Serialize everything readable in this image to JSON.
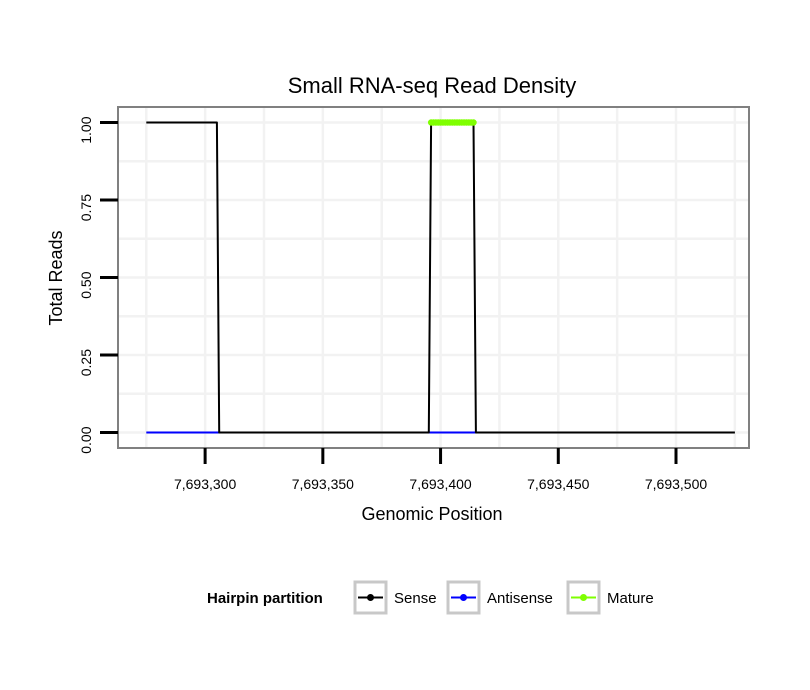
{
  "chart_data": {
    "type": "line",
    "title": "Small RNA-seq Read Density",
    "xlabel": "Genomic Position",
    "ylabel": "Total Reads",
    "xlim": [
      7693263,
      7693531
    ],
    "ylim": [
      -0.05,
      1.05
    ],
    "x_ticks": [
      7693300,
      7693350,
      7693400,
      7693450,
      7693500
    ],
    "x_tick_labels": [
      "7,693,300",
      "7,693,350",
      "7,693,400",
      "7,693,450",
      "7,693,500"
    ],
    "y_ticks": [
      0,
      0.25,
      0.5,
      0.75,
      1.0
    ],
    "y_tick_labels": [
      "0.00",
      "0.25",
      "0.50",
      "0.75",
      "1.00"
    ],
    "grid": true,
    "legend": {
      "title": "Hairpin partition",
      "position": "bottom",
      "entries": [
        "Sense",
        "Antisense",
        "Mature"
      ]
    },
    "series": [
      {
        "name": "Sense",
        "color": "#000000",
        "x": [
          7693275,
          7693305,
          7693306,
          7693395,
          7693396,
          7693414,
          7693415,
          7693525
        ],
        "y": [
          1,
          1,
          0,
          0,
          1,
          1,
          0,
          0
        ]
      },
      {
        "name": "Antisense",
        "color": "#0000ff",
        "x": [
          7693275,
          7693306,
          7693395,
          7693415
        ],
        "y": [
          0,
          0,
          0,
          0
        ]
      },
      {
        "name": "Mature",
        "color": "#7fff00",
        "x": [
          7693396,
          7693414
        ],
        "y": [
          1,
          1
        ]
      }
    ]
  }
}
